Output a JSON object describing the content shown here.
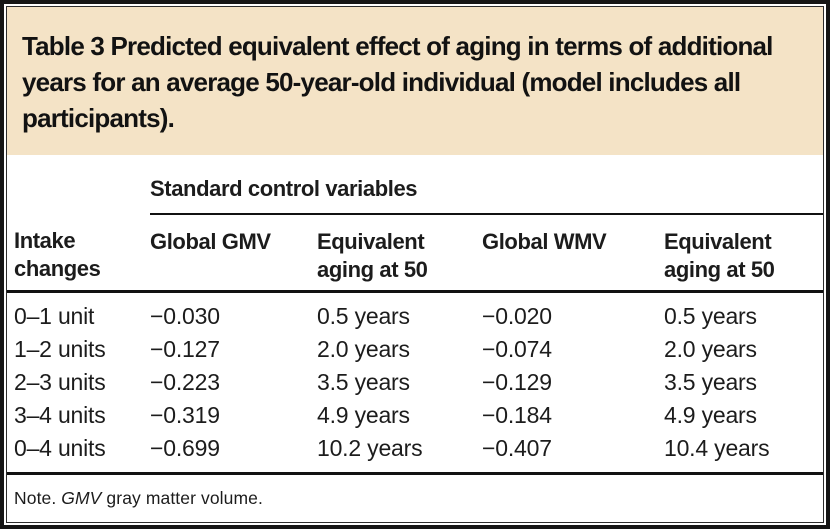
{
  "table": {
    "title": "Table 3 Predicted equivalent effect of aging in terms of additional years for an average 50-year-old individual (model includes all participants).",
    "group_header": "Standard control variables",
    "columns": [
      "Intake changes",
      "Global GMV",
      "Equivalent aging at 50",
      "Global WMV",
      "Equivalent aging at 50"
    ],
    "rows": [
      {
        "intake": "0–1 unit",
        "gmv": "−0.030",
        "gmv_aging": "0.5 years",
        "wmv": "−0.020",
        "wmv_aging": "0.5 years"
      },
      {
        "intake": "1–2 units",
        "gmv": "−0.127",
        "gmv_aging": "2.0 years",
        "wmv": "−0.074",
        "wmv_aging": "2.0 years"
      },
      {
        "intake": "2–3 units",
        "gmv": "−0.223",
        "gmv_aging": "3.5 years",
        "wmv": "−0.129",
        "wmv_aging": "3.5 years"
      },
      {
        "intake": "3–4 units",
        "gmv": "−0.319",
        "gmv_aging": "4.9 years",
        "wmv": "−0.184",
        "wmv_aging": "4.9 years"
      },
      {
        "intake": "0–4 units",
        "gmv": "−0.699",
        "gmv_aging": "10.2 years",
        "wmv": "−0.407",
        "wmv_aging": "10.4 years"
      }
    ],
    "note": {
      "prefix": "Note. ",
      "abbrev": "GMV",
      "suffix": " gray matter volume."
    }
  },
  "colors": {
    "title_band_bg": "#f4e3c6",
    "text": "#1c1c1c",
    "rule": "#111111"
  }
}
